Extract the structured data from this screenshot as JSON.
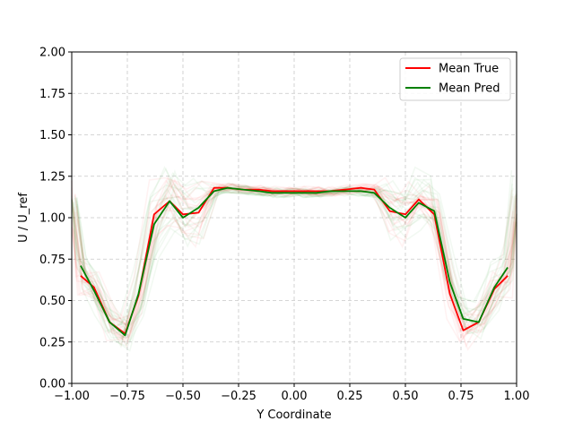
{
  "chart_data": {
    "type": "line",
    "title": "",
    "xlabel": "Y Coordinate",
    "ylabel": "U / U_ref",
    "xlim": [
      -1.0,
      1.0
    ],
    "ylim": [
      0.0,
      2.0
    ],
    "xticks": [
      "−1.00",
      "−0.75",
      "−0.50",
      "−0.25",
      "0.00",
      "0.25",
      "0.50",
      "0.75",
      "1.00"
    ],
    "yticks": [
      "0.00",
      "0.25",
      "0.50",
      "0.75",
      "1.00",
      "1.25",
      "1.50",
      "1.75",
      "2.00"
    ],
    "grid": true,
    "legend_position": "top-right",
    "series": [
      {
        "name": "Mean True",
        "color": "#ff0000",
        "x": [
          -0.96,
          -0.9,
          -0.83,
          -0.76,
          -0.7,
          -0.63,
          -0.56,
          -0.5,
          -0.43,
          -0.36,
          -0.3,
          -0.23,
          -0.16,
          -0.1,
          -0.03,
          0.03,
          0.1,
          0.16,
          0.23,
          0.3,
          0.36,
          0.43,
          0.5,
          0.56,
          0.63,
          0.7,
          0.76,
          0.83,
          0.9,
          0.96
        ],
        "y": [
          0.65,
          0.58,
          0.37,
          0.3,
          0.53,
          1.02,
          1.1,
          1.02,
          1.03,
          1.18,
          1.18,
          1.17,
          1.17,
          1.16,
          1.16,
          1.16,
          1.16,
          1.16,
          1.17,
          1.18,
          1.17,
          1.04,
          1.02,
          1.11,
          1.02,
          0.54,
          0.32,
          0.37,
          0.57,
          0.65
        ]
      },
      {
        "name": "Mean Pred",
        "color": "#008000",
        "x": [
          -0.96,
          -0.9,
          -0.83,
          -0.76,
          -0.7,
          -0.63,
          -0.56,
          -0.5,
          -0.43,
          -0.36,
          -0.3,
          -0.23,
          -0.16,
          -0.1,
          -0.03,
          0.03,
          0.1,
          0.16,
          0.23,
          0.3,
          0.36,
          0.43,
          0.5,
          0.56,
          0.63,
          0.7,
          0.76,
          0.83,
          0.9,
          0.96
        ],
        "y": [
          0.71,
          0.56,
          0.37,
          0.29,
          0.54,
          0.96,
          1.1,
          1.0,
          1.06,
          1.16,
          1.18,
          1.17,
          1.16,
          1.15,
          1.15,
          1.15,
          1.15,
          1.16,
          1.16,
          1.16,
          1.15,
          1.06,
          1.0,
          1.09,
          1.04,
          0.61,
          0.39,
          0.37,
          0.58,
          0.7
        ]
      }
    ]
  }
}
